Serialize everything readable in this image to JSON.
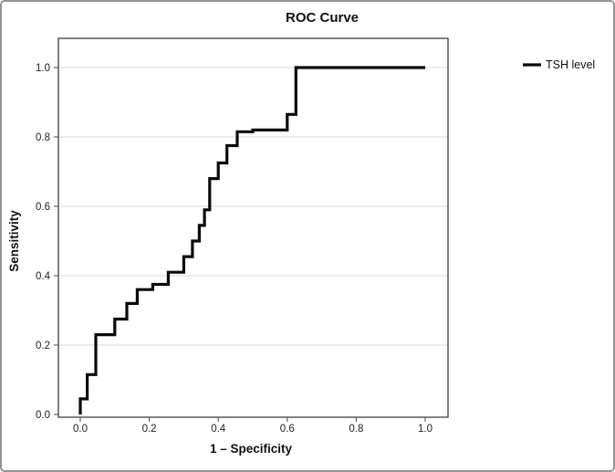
{
  "title": "ROC Curve",
  "legend": {
    "label": "TSH level",
    "line_color": "#0a0a0a",
    "position": "right"
  },
  "axes": {
    "x_label": "1 – Specificity",
    "y_label": "Sensitivity",
    "x_ticks": [
      "0.0",
      "0.2",
      "0.4",
      "0.6",
      "0.8",
      "1.0"
    ],
    "y_ticks": [
      "0.0",
      "0.2",
      "0.4",
      "0.6",
      "0.8",
      "1.0"
    ]
  },
  "colors": {
    "curve": "#0a0a0a",
    "grid": "#d9d9d9",
    "frame_line": "#3f3f3f",
    "axis": "#4a4a4a",
    "outer_border": "#949494",
    "background": "#ffffff"
  },
  "chart_data": {
    "type": "line",
    "subtype": "ROC step curve",
    "title": "ROC Curve",
    "xlabel": "1 – Specificity",
    "ylabel": "Sensitivity",
    "xlim": [
      0,
      1
    ],
    "ylim": [
      0,
      1
    ],
    "x_ticks": [
      0.0,
      0.2,
      0.4,
      0.6,
      0.8,
      1.0
    ],
    "y_ticks": [
      0.0,
      0.2,
      0.4,
      0.6,
      0.8,
      1.0
    ],
    "grid": "horizontal",
    "legend_position": "right",
    "series": [
      {
        "name": "TSH level",
        "color": "#0a0a0a",
        "points": [
          [
            0.0,
            0.0
          ],
          [
            0.0,
            0.045
          ],
          [
            0.02,
            0.045
          ],
          [
            0.02,
            0.115
          ],
          [
            0.045,
            0.115
          ],
          [
            0.045,
            0.23
          ],
          [
            0.1,
            0.23
          ],
          [
            0.1,
            0.275
          ],
          [
            0.135,
            0.275
          ],
          [
            0.135,
            0.32
          ],
          [
            0.165,
            0.32
          ],
          [
            0.165,
            0.36
          ],
          [
            0.21,
            0.36
          ],
          [
            0.21,
            0.375
          ],
          [
            0.255,
            0.375
          ],
          [
            0.255,
            0.41
          ],
          [
            0.3,
            0.41
          ],
          [
            0.3,
            0.455
          ],
          [
            0.325,
            0.455
          ],
          [
            0.325,
            0.5
          ],
          [
            0.345,
            0.5
          ],
          [
            0.345,
            0.545
          ],
          [
            0.36,
            0.545
          ],
          [
            0.36,
            0.59
          ],
          [
            0.375,
            0.59
          ],
          [
            0.375,
            0.68
          ],
          [
            0.4,
            0.68
          ],
          [
            0.4,
            0.725
          ],
          [
            0.425,
            0.725
          ],
          [
            0.425,
            0.775
          ],
          [
            0.455,
            0.775
          ],
          [
            0.455,
            0.815
          ],
          [
            0.5,
            0.815
          ],
          [
            0.5,
            0.82
          ],
          [
            0.6,
            0.82
          ],
          [
            0.6,
            0.865
          ],
          [
            0.625,
            0.865
          ],
          [
            0.625,
            1.0
          ],
          [
            1.0,
            1.0
          ]
        ]
      }
    ]
  }
}
